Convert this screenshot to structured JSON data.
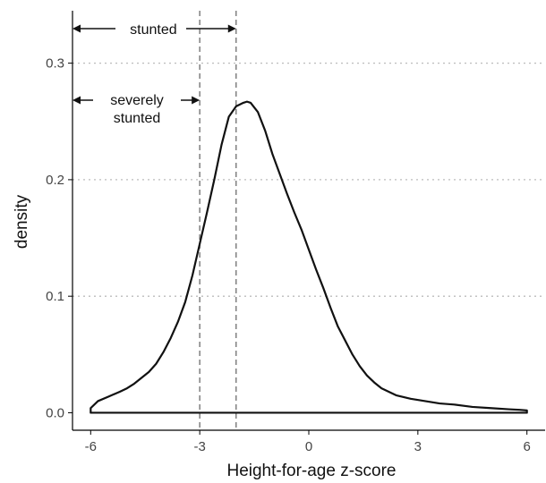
{
  "chart_data": {
    "type": "area",
    "title": "",
    "xlabel": "Height-for-age z-score",
    "ylabel": "density",
    "xlim": [
      -6.5,
      6.5
    ],
    "ylim": [
      -0.015,
      0.345
    ],
    "x_ticks": [
      -6,
      -3,
      0,
      3,
      6
    ],
    "x_tick_labels": [
      "-6",
      "-3",
      "0",
      "3",
      "6"
    ],
    "y_ticks": [
      0.0,
      0.1,
      0.2,
      0.3
    ],
    "y_tick_labels": [
      "0.0",
      "0.1",
      "0.2",
      "0.3"
    ],
    "grid": "horizontal dotted at y ticks",
    "legend": "none",
    "series": [
      {
        "x": [
          -6.0,
          -6.0,
          -5.8,
          -5.5,
          -5.2,
          -5.0,
          -4.8,
          -4.6,
          -4.4,
          -4.2,
          -4.0,
          -3.8,
          -3.6,
          -3.4,
          -3.2,
          -3.0,
          -2.8,
          -2.6,
          -2.4,
          -2.2,
          -2.0,
          -1.8,
          -1.7,
          -1.6,
          -1.4,
          -1.2,
          -1.0,
          -0.8,
          -0.6,
          -0.4,
          -0.2,
          0.0,
          0.2,
          0.4,
          0.6,
          0.8,
          1.0,
          1.2,
          1.4,
          1.6,
          1.8,
          2.0,
          2.4,
          2.8,
          3.2,
          3.6,
          4.0,
          4.5,
          5.0,
          5.5,
          5.8,
          6.0,
          6.0
        ],
        "y": [
          0.0,
          0.004,
          0.01,
          0.014,
          0.018,
          0.021,
          0.025,
          0.03,
          0.035,
          0.042,
          0.052,
          0.064,
          0.078,
          0.095,
          0.118,
          0.145,
          0.172,
          0.2,
          0.23,
          0.254,
          0.263,
          0.266,
          0.267,
          0.266,
          0.258,
          0.242,
          0.222,
          0.205,
          0.188,
          0.172,
          0.157,
          0.14,
          0.123,
          0.107,
          0.09,
          0.074,
          0.062,
          0.05,
          0.04,
          0.032,
          0.026,
          0.021,
          0.015,
          0.012,
          0.01,
          0.008,
          0.007,
          0.005,
          0.004,
          0.003,
          0.0025,
          0.002,
          0.0
        ]
      }
    ],
    "reference_lines": [
      {
        "axis": "x",
        "value": -3,
        "style": "dashed"
      },
      {
        "axis": "x",
        "value": -2,
        "style": "dashed"
      }
    ],
    "annotations": [
      {
        "label": "stunted",
        "from": -6.5,
        "to": -2
      },
      {
        "label": "severely stunted",
        "lines": [
          "severely",
          "stunted"
        ],
        "from": -6.5,
        "to": -3
      }
    ],
    "colors": {
      "curve": "#111111",
      "grid": "#bbbbbb",
      "reference": "#777777",
      "axis": "#000000",
      "tick_text": "#444444"
    }
  }
}
